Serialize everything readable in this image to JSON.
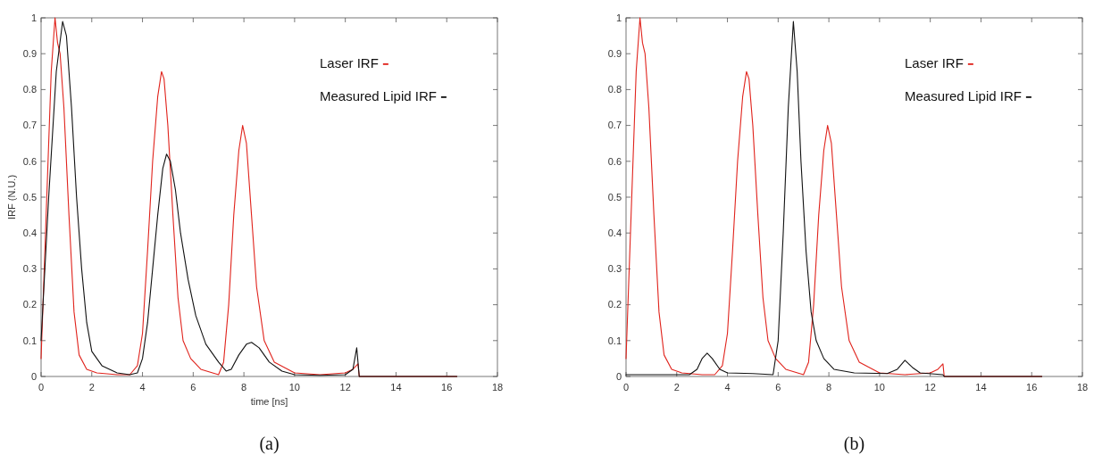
{
  "chart_data": [
    {
      "type": "line",
      "xlabel": "time [ns]",
      "ylabel": "IRF (N.U.)",
      "xlim": [
        0,
        18
      ],
      "ylim": [
        0,
        1
      ],
      "xticks": [
        0,
        2,
        4,
        6,
        8,
        10,
        12,
        14,
        16,
        18
      ],
      "yticks": [
        0,
        0.1,
        0.2,
        0.3,
        0.4,
        0.5,
        0.6,
        0.7,
        0.8,
        0.9,
        1
      ],
      "legend": "top right",
      "annotations": [
        "(a)"
      ],
      "series": [
        {
          "name": "Laser IRF",
          "color": "#e0231c",
          "x": [
            0,
            0.2,
            0.4,
            0.55,
            0.65,
            0.75,
            0.9,
            1.1,
            1.3,
            1.5,
            1.8,
            2.2,
            3,
            3.5,
            3.8,
            4,
            4.2,
            4.4,
            4.6,
            4.75,
            4.85,
            5,
            5.2,
            5.4,
            5.6,
            5.9,
            6.3,
            7,
            7.2,
            7.4,
            7.6,
            7.8,
            7.95,
            8.1,
            8.3,
            8.5,
            8.8,
            9.2,
            10,
            11,
            12,
            12.3,
            12.5,
            12.55,
            16.4
          ],
          "values": [
            0.05,
            0.45,
            0.85,
            1,
            0.93,
            0.9,
            0.75,
            0.45,
            0.18,
            0.06,
            0.02,
            0.01,
            0.005,
            0.005,
            0.03,
            0.12,
            0.35,
            0.6,
            0.78,
            0.85,
            0.83,
            0.7,
            0.45,
            0.22,
            0.1,
            0.05,
            0.02,
            0.005,
            0.04,
            0.2,
            0.45,
            0.63,
            0.7,
            0.65,
            0.45,
            0.25,
            0.1,
            0.04,
            0.01,
            0.005,
            0.01,
            0.02,
            0.035,
            0,
            0
          ]
        },
        {
          "name": "Measured Lipid IRF",
          "color": "#111111",
          "x": [
            0,
            0.3,
            0.6,
            0.85,
            1,
            1.2,
            1.4,
            1.6,
            1.8,
            2,
            2.4,
            3,
            3.5,
            3.8,
            4,
            4.2,
            4.4,
            4.6,
            4.8,
            4.95,
            5.1,
            5.3,
            5.5,
            5.8,
            6.1,
            6.5,
            7,
            7.3,
            7.5,
            7.8,
            8.1,
            8.3,
            8.6,
            9,
            9.5,
            10,
            11,
            12,
            12.3,
            12.45,
            12.55,
            16.4
          ],
          "values": [
            0.1,
            0.5,
            0.85,
            0.99,
            0.95,
            0.75,
            0.5,
            0.3,
            0.15,
            0.07,
            0.03,
            0.01,
            0.005,
            0.01,
            0.05,
            0.15,
            0.3,
            0.45,
            0.58,
            0.62,
            0.6,
            0.52,
            0.4,
            0.27,
            0.17,
            0.09,
            0.04,
            0.015,
            0.02,
            0.06,
            0.09,
            0.095,
            0.08,
            0.04,
            0.015,
            0.005,
            0.003,
            0.005,
            0.02,
            0.08,
            0,
            0
          ]
        }
      ]
    },
    {
      "type": "line",
      "xlim": [
        0,
        18
      ],
      "ylim": [
        0,
        1
      ],
      "xticks": [
        0,
        2,
        4,
        6,
        8,
        10,
        12,
        14,
        16,
        18
      ],
      "yticks": [
        0,
        0.1,
        0.2,
        0.3,
        0.4,
        0.5,
        0.6,
        0.7,
        0.8,
        0.9,
        1
      ],
      "legend": "top right",
      "annotations": [
        "(b)"
      ],
      "series": [
        {
          "name": "Laser IRF",
          "color": "#e0231c",
          "x": [
            0,
            0.2,
            0.4,
            0.55,
            0.65,
            0.75,
            0.9,
            1.1,
            1.3,
            1.5,
            1.8,
            2.2,
            3,
            3.5,
            3.8,
            4,
            4.2,
            4.4,
            4.6,
            4.75,
            4.85,
            5,
            5.2,
            5.4,
            5.6,
            5.9,
            6.3,
            7,
            7.2,
            7.4,
            7.6,
            7.8,
            7.95,
            8.1,
            8.3,
            8.5,
            8.8,
            9.2,
            10,
            11,
            12,
            12.3,
            12.5,
            12.55,
            16.4
          ],
          "values": [
            0.05,
            0.45,
            0.85,
            1,
            0.93,
            0.9,
            0.75,
            0.45,
            0.18,
            0.06,
            0.02,
            0.01,
            0.005,
            0.005,
            0.03,
            0.12,
            0.35,
            0.6,
            0.78,
            0.85,
            0.83,
            0.7,
            0.45,
            0.22,
            0.1,
            0.05,
            0.02,
            0.005,
            0.04,
            0.2,
            0.45,
            0.63,
            0.7,
            0.65,
            0.45,
            0.25,
            0.1,
            0.04,
            0.01,
            0.005,
            0.01,
            0.02,
            0.035,
            0,
            0
          ]
        },
        {
          "name": "Measured Lipid IRF",
          "color": "#111111",
          "x": [
            0,
            1,
            2.5,
            2.8,
            3,
            3.2,
            3.4,
            3.7,
            4,
            5,
            5.8,
            6,
            6.2,
            6.4,
            6.6,
            6.75,
            6.9,
            7.1,
            7.3,
            7.5,
            7.8,
            8.2,
            9,
            10.3,
            10.7,
            11,
            11.3,
            11.6,
            12.5,
            12.55,
            16.4
          ],
          "values": [
            0.005,
            0.005,
            0.005,
            0.02,
            0.05,
            0.065,
            0.05,
            0.02,
            0.01,
            0.008,
            0.005,
            0.1,
            0.4,
            0.75,
            0.99,
            0.85,
            0.6,
            0.35,
            0.18,
            0.1,
            0.05,
            0.02,
            0.01,
            0.008,
            0.02,
            0.045,
            0.025,
            0.01,
            0.005,
            0,
            0
          ]
        }
      ]
    }
  ]
}
